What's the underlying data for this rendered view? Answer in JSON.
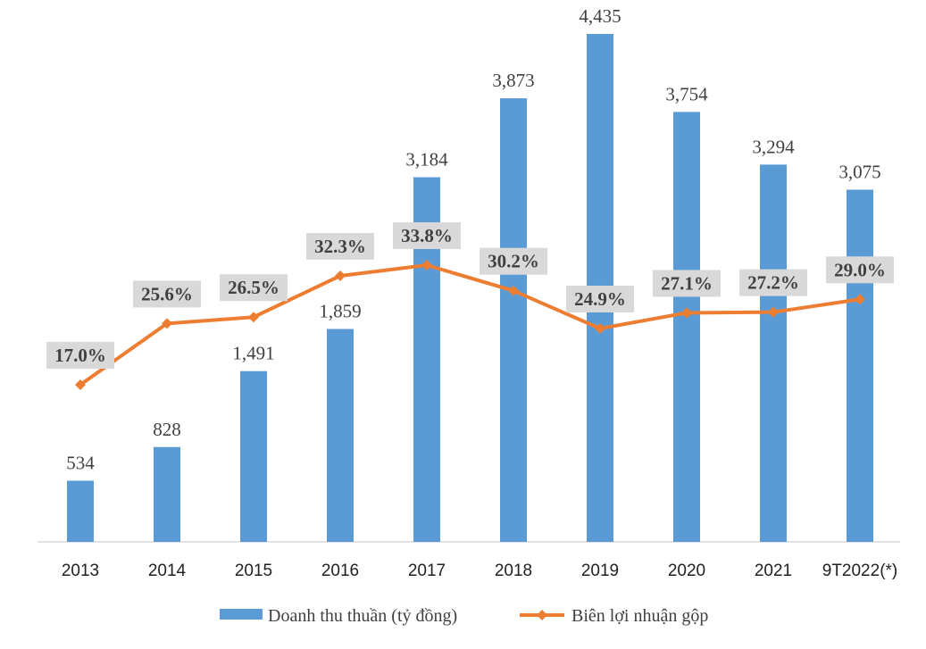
{
  "chart_data": {
    "type": "bar+line",
    "categories": [
      "2013",
      "2014",
      "2015",
      "2016",
      "2017",
      "2018",
      "2019",
      "2020",
      "2021",
      "9T2022(*)"
    ],
    "series": [
      {
        "name": "Doanh thu thuần (tỷ đồng)",
        "type": "bar",
        "values": [
          534,
          828,
          1491,
          1859,
          3184,
          3873,
          4435,
          3754,
          3294,
          3075
        ],
        "labels": [
          "534",
          "828",
          "1,491",
          "1,859",
          "3,184",
          "3,873",
          "4,435",
          "3,754",
          "3,294",
          "3,075"
        ],
        "color": "#5B9BD5"
      },
      {
        "name": "Biên lợi nhuận gộp",
        "type": "line",
        "values": [
          17.0,
          25.6,
          26.5,
          32.3,
          33.8,
          30.2,
          24.9,
          27.1,
          27.2,
          29.0
        ],
        "labels": [
          "17.0%",
          "25.6%",
          "26.5%",
          "32.3%",
          "33.8%",
          "30.2%",
          "24.9%",
          "27.1%",
          "27.2%",
          "29.0%"
        ],
        "color": "#ED7D31"
      }
    ],
    "title": "",
    "xlabel": "",
    "ylabel": "",
    "ylim": [
      0,
      4500
    ],
    "y2lim": [
      0,
      50
    ],
    "grid": false,
    "legend": "bottom",
    "label_box_color": "#D9D9D9"
  }
}
